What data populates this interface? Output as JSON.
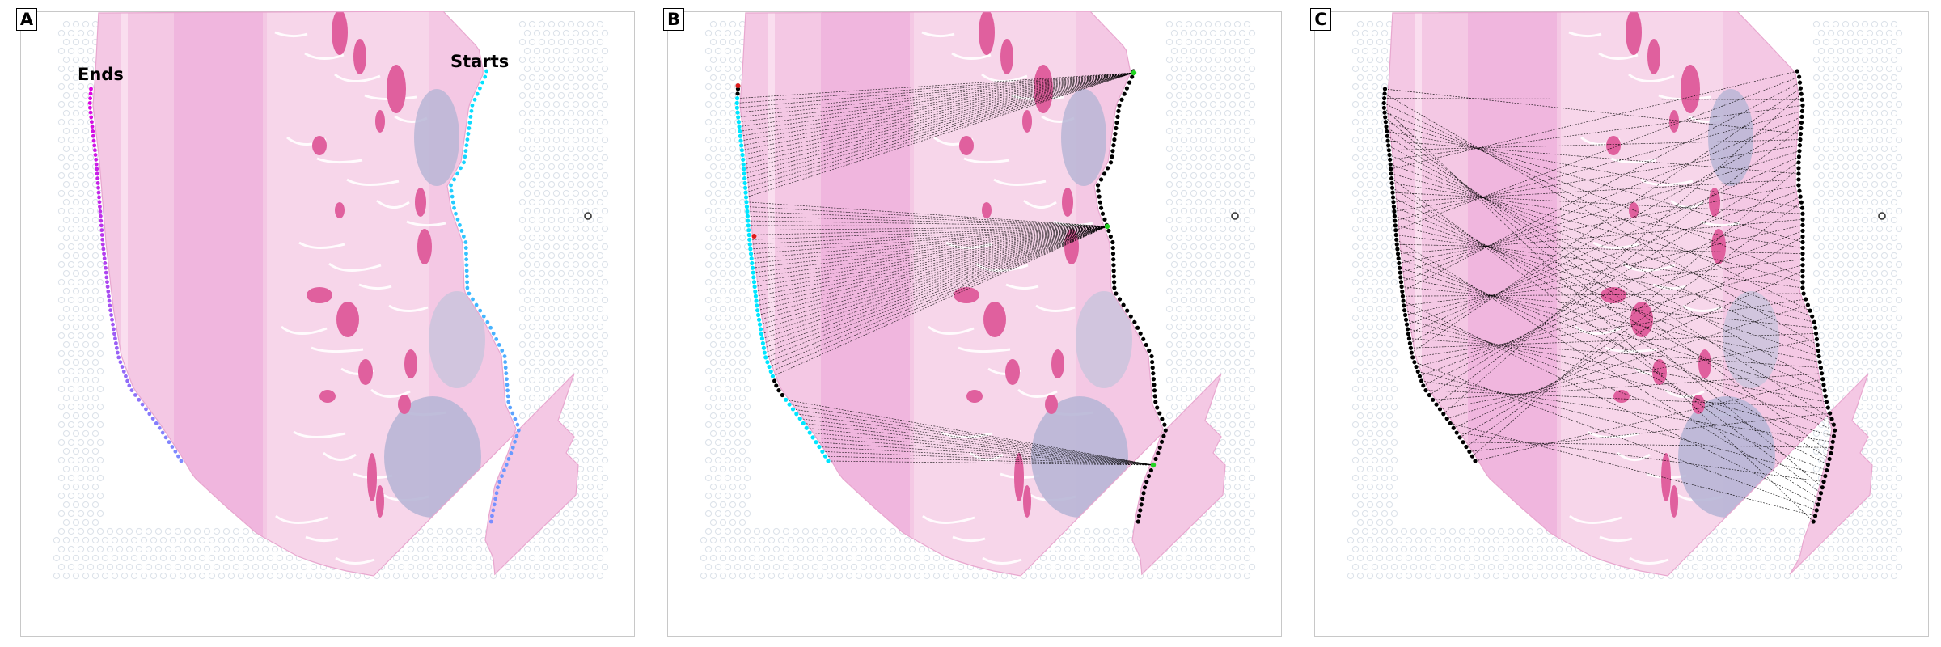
{
  "panels": [
    {
      "letter": "A",
      "annotations": {
        "starts": "Starts",
        "ends": "Ends"
      }
    },
    {
      "letter": "B"
    },
    {
      "letter": "C"
    }
  ],
  "colors": {
    "tissue_light": "#f4c8e4",
    "tissue_mid": "#eeaedb",
    "vessel": "#e0609e",
    "lymph": "#b8b6d6",
    "spot_grid": "#dde3ea",
    "contour_start": "#00e5ff",
    "contour_mid": "#7b8cff",
    "contour_end": "#e000e0",
    "line": "#000000",
    "endpoint_green": "#22d322",
    "endpoint_red": "#e01a1a"
  },
  "icons": [
    "fiducial-dot-icon"
  ]
}
